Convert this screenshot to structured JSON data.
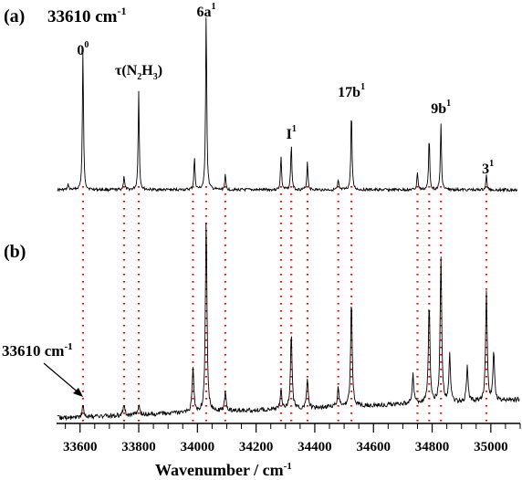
{
  "chart_data": [
    {
      "type": "line",
      "panel_label": "(a)",
      "annotation": "33610 cm",
      "annotation_sup": "-1",
      "peak_labels": [
        {
          "x": 33610,
          "main": "0",
          "sup": "0",
          "sub": "",
          "tail": ""
        },
        {
          "x": 33800,
          "main": "τ(N",
          "sup": "",
          "sub": "2",
          "tail": "H",
          "sub2": "3",
          "close": ")"
        },
        {
          "x": 34030,
          "main": "6a",
          "sup": "1"
        },
        {
          "x": 34320,
          "main": "I",
          "sup": "1"
        },
        {
          "x": 34525,
          "main": "17b",
          "sup": "1"
        },
        {
          "x": 34830,
          "main": "9b",
          "sup": "1"
        },
        {
          "x": 34990,
          "main": "3",
          "sup": "1"
        }
      ],
      "peaks": [
        {
          "x": 33560,
          "y": 0.03
        },
        {
          "x": 33610,
          "y": 0.78
        },
        {
          "x": 33750,
          "y": 0.08
        },
        {
          "x": 33800,
          "y": 0.55
        },
        {
          "x": 33990,
          "y": 0.18
        },
        {
          "x": 34030,
          "y": 1.0
        },
        {
          "x": 34095,
          "y": 0.08
        },
        {
          "x": 34285,
          "y": 0.19
        },
        {
          "x": 34320,
          "y": 0.26
        },
        {
          "x": 34375,
          "y": 0.16
        },
        {
          "x": 34480,
          "y": 0.05
        },
        {
          "x": 34525,
          "y": 0.45
        },
        {
          "x": 34750,
          "y": 0.1
        },
        {
          "x": 34790,
          "y": 0.3
        },
        {
          "x": 34830,
          "y": 0.37
        },
        {
          "x": 34985,
          "y": 0.08
        }
      ]
    },
    {
      "type": "line",
      "panel_label": "(b)",
      "annotation": "33610 cm",
      "annotation_sup": "-1",
      "xlabel": "Wavenumber / cm",
      "xlabel_sup": "-1",
      "xlim": [
        33520,
        35100
      ],
      "xticks": [
        33600,
        33800,
        34000,
        34200,
        34400,
        34600,
        34800,
        35000
      ],
      "xtick_labels": [
        "33600",
        "33800",
        "34000",
        "34200",
        "34400",
        "34600",
        "34800",
        "35000"
      ],
      "peaks": [
        {
          "x": 33610,
          "y": 0.06
        },
        {
          "x": 33750,
          "y": 0.06
        },
        {
          "x": 33800,
          "y": 0.05
        },
        {
          "x": 33985,
          "y": 0.24
        },
        {
          "x": 34030,
          "y": 1.0
        },
        {
          "x": 34095,
          "y": 0.1
        },
        {
          "x": 34285,
          "y": 0.1
        },
        {
          "x": 34320,
          "y": 0.4
        },
        {
          "x": 34375,
          "y": 0.15
        },
        {
          "x": 34480,
          "y": 0.1
        },
        {
          "x": 34525,
          "y": 0.55
        },
        {
          "x": 34735,
          "y": 0.15
        },
        {
          "x": 34790,
          "y": 0.52
        },
        {
          "x": 34830,
          "y": 0.75
        },
        {
          "x": 34860,
          "y": 0.25
        },
        {
          "x": 34920,
          "y": 0.18
        },
        {
          "x": 34985,
          "y": 0.57
        },
        {
          "x": 35010,
          "y": 0.25
        }
      ]
    }
  ],
  "dotted_guides_x": [
    33610,
    33750,
    33800,
    33985,
    34030,
    34095,
    34285,
    34320,
    34375,
    34480,
    34525,
    34750,
    34790,
    34830,
    34985
  ],
  "colors": {
    "trace": "#000000",
    "guide": "#ff0000",
    "axis": "#000000"
  }
}
